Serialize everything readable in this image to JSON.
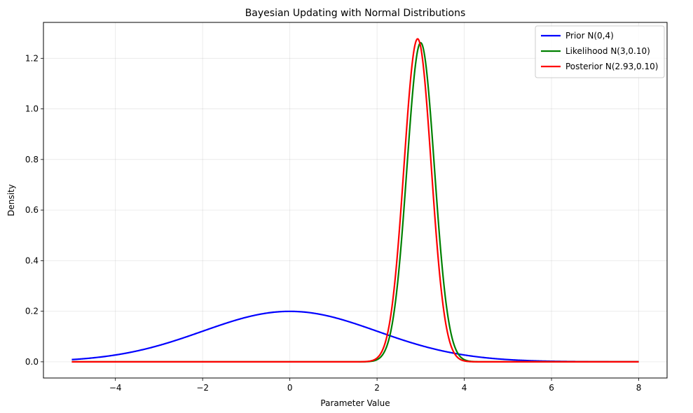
{
  "chart_data": {
    "type": "line",
    "title": "Bayesian Updating with Normal Distributions",
    "xlabel": "Parameter Value",
    "ylabel": "Density",
    "xlim": [
      -5.65,
      8.65
    ],
    "ylim": [
      -0.064,
      1.342
    ],
    "xticks": [
      -4,
      -2,
      0,
      2,
      4,
      6,
      8
    ],
    "yticks": [
      0.0,
      0.2,
      0.4,
      0.6,
      0.8,
      1.0,
      1.2
    ],
    "xtick_labels": [
      "−4",
      "−2",
      "0",
      "2",
      "4",
      "6",
      "8"
    ],
    "ytick_labels": [
      "0.0",
      "0.2",
      "0.4",
      "0.6",
      "0.8",
      "1.0",
      "1.2"
    ],
    "grid": true,
    "legend_position": "top-right",
    "series": [
      {
        "name": "Prior N(0,4)",
        "color": "#0000ff",
        "mean": 0,
        "variance": 4,
        "x_range": [
          -5,
          8
        ]
      },
      {
        "name": "Likelihood N(3,0.10)",
        "color": "#008000",
        "mean": 3,
        "variance": 0.1,
        "x_range": [
          -5,
          8
        ]
      },
      {
        "name": "Posterior N(2.93,0.10)",
        "color": "#ff0000",
        "mean": 2.93,
        "variance": 0.0976,
        "x_range": [
          -5,
          8
        ]
      }
    ]
  }
}
